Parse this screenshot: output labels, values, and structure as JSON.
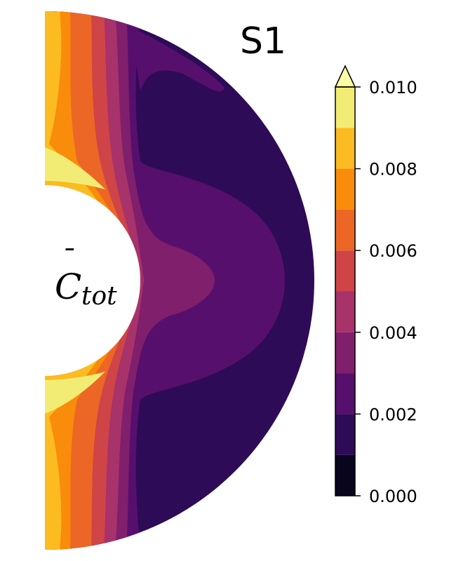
{
  "chart_data": {
    "type": "contour",
    "title": "S1",
    "field_label": {
      "symbol": "C",
      "accent": "¯",
      "subscript": "tot"
    },
    "colorbar": {
      "levels": [
        0.0,
        0.001,
        0.002,
        0.003,
        0.004,
        0.005,
        0.006,
        0.007,
        0.008,
        0.009,
        0.01
      ],
      "tick_values": [
        0.0,
        0.002,
        0.004,
        0.006,
        0.008,
        0.01
      ],
      "tick_labels": [
        "0.000",
        "0.002",
        "0.004",
        "0.006",
        "0.008",
        "0.010"
      ],
      "extend": "max",
      "colors": [
        "#08051d",
        "#2e0b57",
        "#570f6d",
        "#801f6c",
        "#a8326a",
        "#cf4446",
        "#ec6726",
        "#f98c0a",
        "#fbbb21",
        "#f2ec75"
      ],
      "over_color": "#fcffa4"
    },
    "contour_bands": [
      {
        "level_index": 8,
        "value_range": [
          0.008,
          0.009
        ],
        "region": "inner-rim-left"
      },
      {
        "level_index": 7,
        "value_range": [
          0.007,
          0.008
        ],
        "region": "inner-rim-left"
      },
      {
        "level_index": 6,
        "value_range": [
          0.006,
          0.007
        ],
        "region": "inner-rim-left"
      },
      {
        "level_index": 5,
        "value_range": [
          0.005,
          0.006
        ],
        "region": "inner-rim-left"
      },
      {
        "level_index": 4,
        "value_range": [
          0.004,
          0.005
        ],
        "region": "inner-rim-left"
      },
      {
        "level_index": 3,
        "value_range": [
          0.003,
          0.004
        ],
        "region": "equatorial-bulge"
      },
      {
        "level_index": 2,
        "value_range": [
          0.002,
          0.003
        ],
        "region": "mid-shell"
      },
      {
        "level_index": 1,
        "value_range": [
          0.001,
          0.002
        ],
        "region": "outer-shell"
      }
    ]
  }
}
